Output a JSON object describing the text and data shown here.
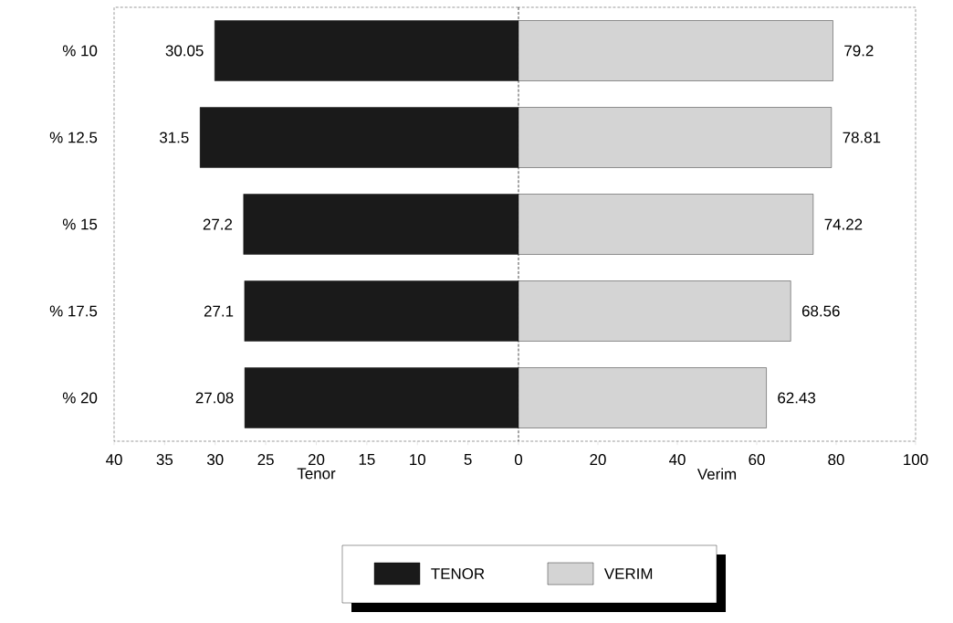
{
  "chart_data": [
    {
      "type": "bar",
      "orientation": "horizontal",
      "categories": [
        "% 10",
        "% 12.5",
        "% 15",
        "% 17.5",
        "% 20"
      ],
      "xlabel": "Tenor",
      "xlim": [
        40,
        0
      ],
      "xticks": [
        40,
        35,
        30,
        25,
        20,
        15,
        10,
        5
      ],
      "legend": "bottom",
      "data_labels": true,
      "series": [
        {
          "name": "TENOR",
          "color": "#1a1a1a",
          "values": [
            30.05,
            31.5,
            27.2,
            27.1,
            27.08
          ]
        }
      ]
    },
    {
      "type": "bar",
      "orientation": "horizontal",
      "categories": [
        null,
        null,
        null,
        null,
        null
      ],
      "xlabel": "Verim",
      "xlim": [
        0,
        100
      ],
      "xticks": [
        0,
        20,
        40,
        60,
        80,
        100
      ],
      "tick_labels": "x",
      "legend": "bottom",
      "data_labels": true,
      "series": [
        {
          "name": "VERIM",
          "color": "#d4d4d4",
          "values": [
            79.2,
            78.81,
            74.22,
            68.56,
            62.43
          ]
        }
      ]
    }
  ]
}
